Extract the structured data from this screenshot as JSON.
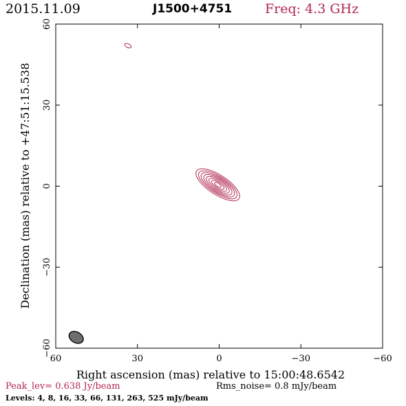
{
  "header": {
    "date": "2015.11.09",
    "source": "J1500+4751",
    "freq": "Freq: 4.3 GHz"
  },
  "footer": {
    "peak": "Peak_lev=  0.638 Jy/beam",
    "rms": "Rms_noise=  0.8 mJy/beam",
    "levels": "Levels:   4,    8,   16,   33,   66,  131,  263,  525  mJy/beam"
  },
  "colors": {
    "contour": "#b0264d",
    "beam_fill": "#6e6e6e",
    "axis": "#000000"
  },
  "chart_data": {
    "type": "contour",
    "xlabel": "Right ascension (mas) relative to 15:00:48.6542",
    "ylabel": "Declination (mas) relative to +47:51:15.538",
    "xlim": [
      60,
      -60
    ],
    "ylim": [
      -60,
      60
    ],
    "xticks": [
      60,
      30,
      0,
      -30,
      -60
    ],
    "xtick_labels": [
      "60",
      "30",
      "0",
      "−30",
      "−60"
    ],
    "yticks": [
      60,
      30,
      0,
      -30,
      -60
    ],
    "ytick_labels": [
      "60",
      "30",
      "0",
      "−30",
      "−60"
    ],
    "levels_mJy_per_beam": [
      4,
      8,
      16,
      33,
      66,
      131,
      263,
      525
    ],
    "peak_Jy_per_beam": 0.638,
    "rms_mJy_per_beam": 0.8,
    "core": {
      "center": [
        0.5,
        0.5
      ],
      "orientation_deg": -33,
      "semi_axes": [
        [
          9.3,
          3.6
        ],
        [
          8.2,
          3.1
        ],
        [
          7.1,
          2.7
        ],
        [
          6.0,
          2.3
        ],
        [
          4.9,
          1.9
        ],
        [
          3.8,
          1.45
        ],
        [
          2.7,
          1.0
        ],
        [
          1.4,
          0.6
        ]
      ]
    },
    "feature": {
      "center": [
        33.5,
        52
      ],
      "orientation_deg": -25,
      "semi_axes": [
        1.3,
        0.7
      ]
    },
    "beam": {
      "center": [
        52.5,
        -56
      ],
      "orientation_deg": -30,
      "semi_axes": [
        2.8,
        2.0
      ]
    }
  }
}
